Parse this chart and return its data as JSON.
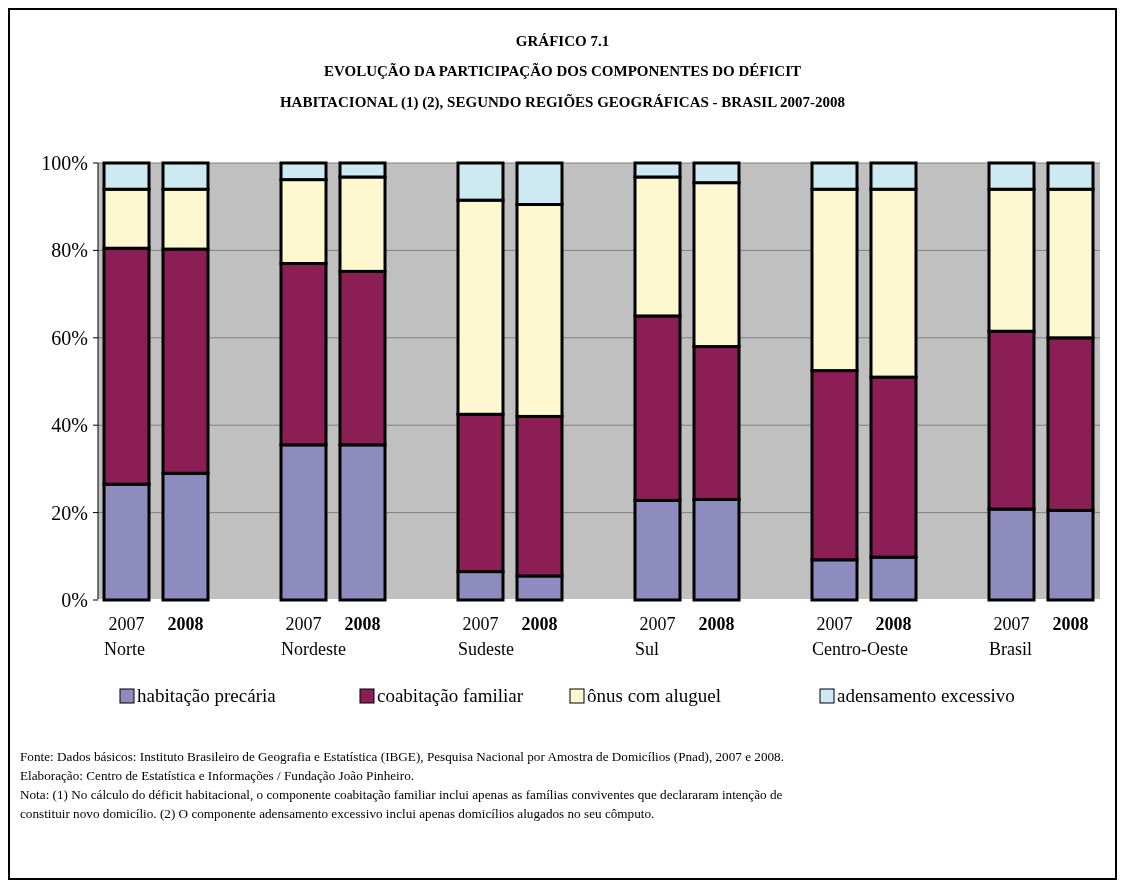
{
  "chart_data": {
    "type": "bar",
    "stacked": true,
    "title": "GRÁFICO 7.1",
    "subtitle": "EVOLUÇÃO DA PARTICIPAÇÃO DOS COMPONENTES DO DÉFICIT\nHABITACIONAL (1) (2), SEGUNDO REGIÕES GEOGRÁFICAS - BRASIL 2007-2008",
    "categories": [
      "2007",
      "2008",
      "2007",
      "2008",
      "2007",
      "2008",
      "2007",
      "2008",
      "2007",
      "2008",
      "2007",
      "2008"
    ],
    "series": [
      {
        "name": "habitação precária",
        "color": "#8e8cbf",
        "values": [
          26.5,
          29,
          35.5,
          35.5,
          6.5,
          5.5,
          22.8,
          23,
          9.2,
          9.8,
          20.8,
          20.5
        ]
      },
      {
        "name": "coabitação familiar",
        "color": "#8b1f55",
        "values": [
          54,
          51.3,
          41.5,
          39.7,
          36,
          36.5,
          42.2,
          35,
          43.3,
          41.2,
          40.7,
          39.5
        ]
      },
      {
        "name": "ônus com aluguel",
        "color": "#fdf8cf",
        "values": [
          13.5,
          13.7,
          19.2,
          21.6,
          49,
          48.5,
          31.8,
          37.5,
          41.5,
          43,
          32.5,
          34
        ]
      },
      {
        "name": "adensamento excessivo",
        "color": "#cde9f1",
        "values": [
          6,
          6,
          3.8,
          3.2,
          8.5,
          9.5,
          3.2,
          4.5,
          6,
          6,
          6,
          6
        ]
      }
    ],
    "ylim": [
      0,
      100
    ],
    "yticks": [
      {
        "value": 0,
        "label": "0%"
      },
      {
        "value": 20,
        "label": "20%"
      },
      {
        "value": 40,
        "label": "40%"
      },
      {
        "value": 60,
        "label": "60%"
      },
      {
        "value": 80,
        "label": "80%"
      },
      {
        "value": 100,
        "label": "100%"
      }
    ],
    "grid": "y",
    "legend": "bottom",
    "annotations": [
      "Norte",
      "Nordeste",
      "Sudeste",
      "Sul",
      "Centro-Oeste",
      "Brasil",
      "Fonte: Dados básicos: Instituto Brasileiro de Geografia e Estatística (IBGE), Pesquisa Nacional por Amostra de Domicílios (Pnad), 2007 e 2008.",
      "Elaboração: Centro de Estatística e Informações / Fundação João Pinheiro.",
      "Nota: (1) No cálculo do déficit habitacional, o componente coabitação familiar inclui apenas as famílias conviventes que declararam intenção de",
      "constituir novo domicílio. (2) O componente adensamento excessivo inclui apenas domicílios alugados no seu cômputo."
    ]
  }
}
